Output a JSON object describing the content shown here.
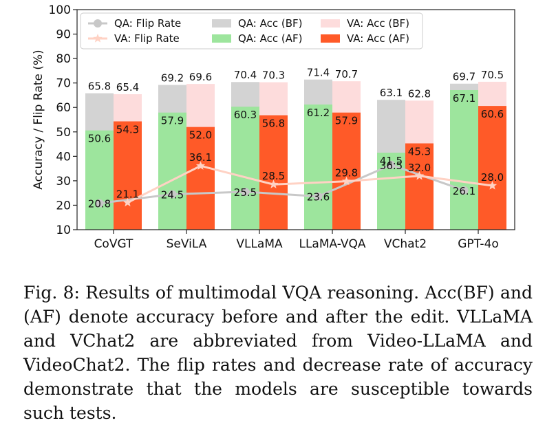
{
  "chart_data": {
    "type": "bar",
    "title": "",
    "xlabel": "",
    "ylabel": "Accuracy / Flip Rate (%)",
    "ylim": [
      10,
      100
    ],
    "yticks": [
      "10",
      "20",
      "30",
      "40",
      "50",
      "60",
      "70",
      "80",
      "90",
      "100"
    ],
    "categories": [
      "CoVGT",
      "SeViLA",
      "VLLaMA",
      "LLaMA-VQA",
      "VChat2",
      "GPT-4o"
    ],
    "series": [
      {
        "name": "QA: Acc (BF)",
        "kind": "bar",
        "group": "QA",
        "color": "#d3d3d3",
        "values": [
          65.8,
          69.2,
          70.4,
          71.4,
          63.1,
          69.7
        ]
      },
      {
        "name": "QA: Acc (AF)",
        "kind": "bar",
        "group": "QA",
        "color": "#9de59d",
        "values": [
          50.6,
          57.9,
          60.3,
          61.2,
          41.5,
          67.1
        ]
      },
      {
        "name": "VA: Acc (BF)",
        "kind": "bar",
        "group": "VA",
        "color": "#fddcdc",
        "values": [
          65.4,
          69.6,
          70.3,
          70.7,
          62.8,
          70.5
        ]
      },
      {
        "name": "VA: Acc (AF)",
        "kind": "bar",
        "group": "VA",
        "color": "#ff5a28",
        "values": [
          54.3,
          52.0,
          56.8,
          57.9,
          45.3,
          60.6
        ]
      },
      {
        "name": "QA: Flip Rate",
        "kind": "line",
        "group": "QA",
        "color": "#c8c8c8",
        "marker": "circle",
        "values": [
          20.8,
          24.5,
          25.5,
          23.6,
          36.5,
          26.1
        ]
      },
      {
        "name": "VA: Flip Rate",
        "kind": "line",
        "group": "VA",
        "color": "#ffd2c4",
        "marker": "star",
        "values": [
          21.1,
          36.1,
          28.5,
          29.8,
          32.0,
          28.0
        ]
      }
    ],
    "bar_labels": {
      "qa_bf": [
        "65.8",
        "69.2",
        "70.4",
        "71.4",
        "63.1",
        "69.7"
      ],
      "va_bf": [
        "65.4",
        "69.6",
        "70.3",
        "70.7",
        "62.8",
        "70.5"
      ],
      "qa_af": [
        "50.6",
        "57.9",
        "60.3",
        "61.2",
        "41.5",
        "67.1"
      ],
      "va_af": [
        "54.3",
        "52.0",
        "56.8",
        "57.9",
        "45.3",
        "60.6"
      ],
      "qa_flip": [
        "20.8",
        "24.5",
        "25.5",
        "23.6",
        "36.5",
        "26.1"
      ],
      "va_flip": [
        "21.1",
        "36.1",
        "28.5",
        "29.8",
        "32.0",
        "28.0"
      ]
    },
    "legend": {
      "placement": "top",
      "entries": [
        {
          "label": "QA: Flip Rate",
          "kind": "line",
          "color": "#c8c8c8",
          "marker": "circle"
        },
        {
          "label": "VA: Flip Rate",
          "kind": "line",
          "color": "#ffd2c4",
          "marker": "star"
        },
        {
          "label": "QA: Acc (BF)",
          "kind": "patch",
          "color": "#d3d3d3"
        },
        {
          "label": "QA: Acc (AF)",
          "kind": "patch",
          "color": "#9de59d"
        },
        {
          "label": "VA: Acc (BF)",
          "kind": "patch",
          "color": "#fddcdc"
        },
        {
          "label": "VA: Acc (AF)",
          "kind": "patch",
          "color": "#ff5a28"
        }
      ]
    },
    "grid": false
  },
  "caption": "Fig. 8: Results of multimodal VQA reasoning. Acc(BF) and (AF) denote accuracy before and after the edit. VLLaMA and VChat2 are abbreviated from Video-LLaMA and VideoChat2. The flip rates and decrease rate of accuracy demonstrate that the models are susceptible towards such tests."
}
